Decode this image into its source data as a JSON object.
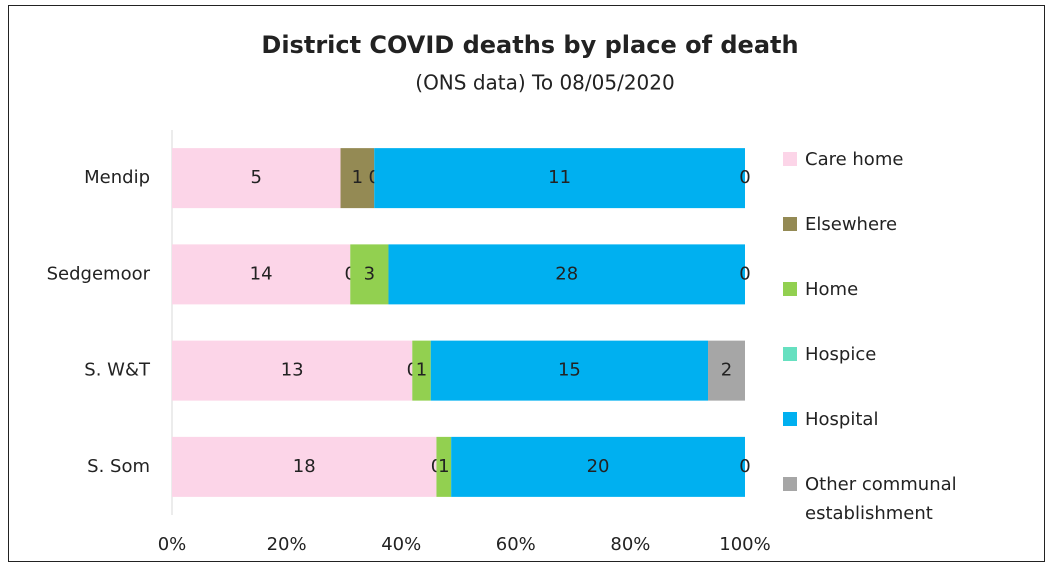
{
  "chart_data": {
    "type": "bar",
    "orientation": "horizontal",
    "stack": "percent",
    "title": "District COVID deaths by place of death",
    "subtitle": "(ONS data)  To 08/05/2020",
    "categories": [
      "Mendip",
      "Sedgemoor",
      "S. W&T",
      "S. Som"
    ],
    "series": [
      {
        "name": "Care home",
        "color": "#fcd5e8",
        "values": [
          5,
          14,
          13,
          18
        ]
      },
      {
        "name": "Elsewhere",
        "color": "#948a54",
        "values": [
          1,
          0,
          0,
          0
        ]
      },
      {
        "name": "Home",
        "color": "#92d050",
        "values": [
          0,
          3,
          1,
          1
        ]
      },
      {
        "name": "Hospice",
        "color": "#66e0c0",
        "values": [
          0,
          0,
          0,
          0
        ],
        "data_labels": false
      },
      {
        "name": "Hospital",
        "color": "#00b0f0",
        "values": [
          11,
          28,
          15,
          20
        ]
      },
      {
        "name": "Other communal establishment",
        "color": "#a6a6a6",
        "values": [
          0,
          0,
          2,
          0
        ]
      }
    ],
    "xlim": [
      0,
      100
    ],
    "xticks": [
      {
        "value": 0,
        "label": "0%"
      },
      {
        "value": 20,
        "label": "20%"
      },
      {
        "value": 40,
        "label": "40%"
      },
      {
        "value": 60,
        "label": "60%"
      },
      {
        "value": 80,
        "label": "80%"
      },
      {
        "value": 100,
        "label": "100%"
      }
    ],
    "legend": "right"
  }
}
